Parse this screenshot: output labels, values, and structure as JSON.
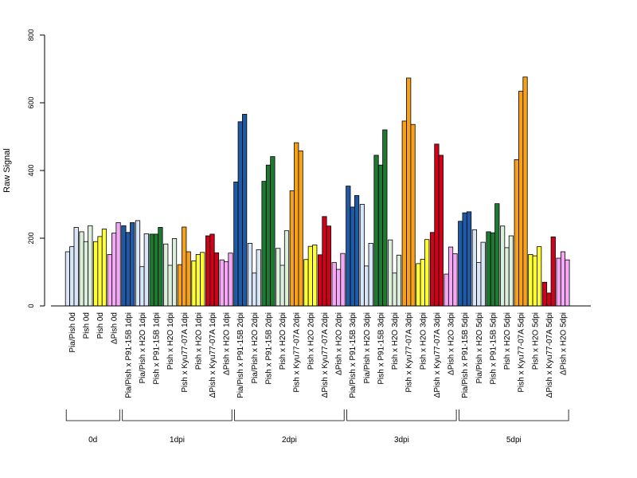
{
  "chart_data": {
    "type": "bar",
    "ylabel": "Raw Signal",
    "ylim": [
      0,
      800
    ],
    "yticks": [
      0,
      200,
      400,
      600,
      800
    ],
    "grid": false,
    "categories": [
      "Pia/Pish 0d",
      "Pish 0d",
      "Pish 0d",
      "ΔPish 0d",
      "Pia/Pish x P91-15B 1dpi",
      "Pia/Pish x H2O 1dpi",
      "Pish x P91-15B 1dpi",
      "Pish x H2O 1dpi",
      "Pish x Kyu77-07A 1dpi",
      "Pish x H2O 1dpi",
      "ΔPish x Kyu77-07A 1dpi",
      "ΔPish x H2O 1dpi",
      "Pia/Pish x P91-15B 2dpi",
      "Pia/Pish x H2O 2dpi",
      "Pish x P91-15B 2dpi",
      "Pish x H2O 2dpi",
      "Pish x Kyu77-07A 2dpi",
      "Pish x H2O 2dpi",
      "ΔPish x Kyu77-07A 2dpi",
      "ΔPish x H2O 2dpi",
      "Pia/Pish x P91-15B 3dpi",
      "Pia/Pish x H2O 3dpi",
      "Pish x P91-15B 3dpi",
      "Pish x H2O 3dpi",
      "Pish x Kyu77-07A 3dpi",
      "Pish x H2O 3dpi",
      "ΔPish x Kyu77-07A 3dpi",
      "ΔPish x H2O 3dpi",
      "Pia/Pish x P91-15B 5dpi",
      "Pia/Pish x H2O 5dpi",
      "Pish x P91-15B 5dpi",
      "Pish x H2O 5dpi",
      "Pish x Kyu77-07A 5dpi",
      "Pish x H2O 5dpi",
      "ΔPish x Kyu77-07A 5dpi",
      "ΔPish x H2O 5dpi"
    ],
    "colors": {
      "Pia/Pish x P91-15B": "#1f5aa6",
      "Pia/Pish x H2O": "#d8e6f7",
      "Pish x P91-15B": "#1e7a32",
      "Pish x H2O (P91)": "#dcefdc",
      "Pish x Kyu77-07A": "#f7a11a",
      "Pish x H2O (Kyu)": "#ffff33",
      "ΔPish x Kyu77-07A": "#d0021b",
      "ΔPish x H2O": "#f5a8f5",
      "Pia/Pish 0d": "#d8e6f7",
      "Pish 0d (a)": "#dcefdc",
      "Pish 0d (b)": "#ffff33",
      "ΔPish 0d": "#f5a8f5"
    },
    "bar_colors": [
      "#d8e6f7",
      "#dcefdc",
      "#ffff33",
      "#f5a8f5",
      "#1f5aa6",
      "#d8e6f7",
      "#1e7a32",
      "#dcefdc",
      "#f7a11a",
      "#ffff33",
      "#d0021b",
      "#f5a8f5",
      "#1f5aa6",
      "#d8e6f7",
      "#1e7a32",
      "#dcefdc",
      "#f7a11a",
      "#ffff33",
      "#d0021b",
      "#f5a8f5",
      "#1f5aa6",
      "#d8e6f7",
      "#1e7a32",
      "#dcefdc",
      "#f7a11a",
      "#ffff33",
      "#d0021b",
      "#f5a8f5",
      "#1f5aa6",
      "#d8e6f7",
      "#1e7a32",
      "#dcefdc",
      "#f7a11a",
      "#ffff33",
      "#d0021b",
      "#f5a8f5"
    ],
    "values": [
      [
        160,
        175,
        232
      ],
      [
        219,
        190,
        237
      ],
      [
        190,
        205,
        227
      ],
      [
        152,
        215,
        246
      ],
      [
        237,
        217,
        246
      ],
      [
        252,
        116,
        213
      ],
      [
        212,
        212,
        232
      ],
      [
        183,
        120,
        199
      ],
      [
        122,
        233,
        160
      ],
      [
        133,
        152,
        158
      ],
      [
        207,
        212,
        157
      ],
      [
        136,
        131,
        156
      ],
      [
        366,
        544,
        566
      ],
      [
        185,
        97,
        166
      ],
      [
        368,
        416,
        441
      ],
      [
        170,
        120,
        222
      ],
      [
        340,
        482,
        458
      ],
      [
        137,
        176,
        180
      ],
      [
        151,
        264,
        236
      ],
      [
        128,
        108,
        155
      ],
      [
        354,
        292,
        326
      ],
      [
        300,
        118,
        185
      ],
      [
        445,
        416,
        520
      ],
      [
        195,
        97,
        150
      ],
      [
        546,
        673,
        536
      ],
      [
        125,
        138,
        196
      ],
      [
        217,
        478,
        445
      ],
      [
        94,
        174,
        154
      ],
      [
        250,
        275,
        278
      ],
      [
        225,
        128,
        188
      ],
      [
        219,
        216,
        302
      ],
      [
        236,
        172,
        207
      ],
      [
        432,
        634,
        676
      ],
      [
        152,
        148,
        175
      ],
      [
        70,
        38,
        204
      ],
      [
        141,
        160,
        136
      ]
    ],
    "groups": [
      {
        "label": "0d",
        "count": 4
      },
      {
        "label": "1dpi",
        "count": 8
      },
      {
        "label": "2dpi",
        "count": 8
      },
      {
        "label": "3dpi",
        "count": 8
      },
      {
        "label": "5dpi",
        "count": 8
      }
    ]
  }
}
